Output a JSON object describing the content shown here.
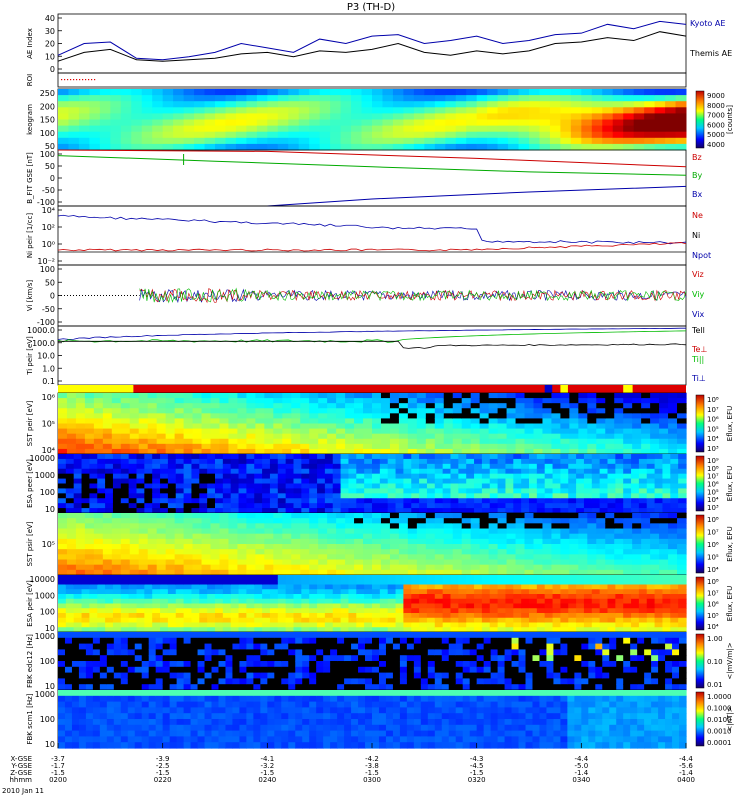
{
  "title": "P3 (TH-D)",
  "chart_data": {
    "type": "multi-panel time-series and spectrogram",
    "time_axis": {
      "ticks": [
        "0200",
        "0220",
        "0240",
        "0300",
        "0320",
        "0340",
        "0400"
      ],
      "date": "2010 Jan 11",
      "rows": [
        {
          "label": "X-GSE",
          "values": [
            "-3.7",
            "-3.9",
            "-4.1",
            "-4.2",
            "-4.3",
            "-4.4",
            "-4.4"
          ]
        },
        {
          "label": "Y-GSE",
          "values": [
            "-1.7",
            "-2.5",
            "-3.2",
            "-3.8",
            "-4.5",
            "-5.0",
            "-5.6"
          ]
        },
        {
          "label": "Z-GSE",
          "values": [
            "-1.5",
            "-1.5",
            "-1.5",
            "-1.5",
            "-1.5",
            "-1.4",
            "-1.4"
          ]
        },
        {
          "label": "hhmm",
          "values": [
            "0200",
            "0220",
            "0240",
            "0300",
            "0320",
            "0340",
            "0400"
          ]
        }
      ]
    },
    "panels": [
      {
        "id": "ae",
        "type": "line",
        "ylabel": "AE Index",
        "yticks": [
          "40",
          "30",
          "20",
          "10",
          "0"
        ],
        "ylim": [
          0,
          40
        ],
        "series": [
          {
            "name": "Kyoto AE",
            "color": "#0000aa",
            "x": [
              0,
              5,
              10,
              15,
              20,
              25,
              30,
              35,
              40,
              45,
              50,
              55,
              60,
              65,
              70,
              75,
              80,
              85,
              90,
              95,
              100,
              105,
              110,
              115,
              120
            ],
            "y": [
              12,
              20,
              21,
              10,
              9,
              11,
              14,
              20,
              17,
              14,
              23,
              20,
              25,
              26,
              20,
              22,
              25,
              20,
              22,
              26,
              27,
              33,
              30,
              35,
              33
            ]
          },
          {
            "name": "Themis AE",
            "color": "#000000",
            "x": [
              0,
              5,
              10,
              15,
              20,
              25,
              30,
              35,
              40,
              45,
              50,
              55,
              60,
              65,
              70,
              75,
              80,
              85,
              90,
              95,
              100,
              105,
              110,
              115,
              120
            ],
            "y": [
              8,
              14,
              16,
              9,
              8,
              9,
              10,
              13,
              14,
              11,
              15,
              14,
              16,
              20,
              14,
              12,
              15,
              13,
              15,
              20,
              21,
              24,
              22,
              28,
              25
            ]
          }
        ]
      },
      {
        "id": "roi",
        "type": "marker",
        "ylabel": "ROI"
      },
      {
        "id": "kev",
        "type": "heatmap",
        "ylabel": "keogram",
        "yticks": [
          "250",
          "200",
          "150",
          "100",
          "50"
        ],
        "colorbar": {
          "ticks": [
            "9000",
            "8000",
            "7000",
            "6000",
            "5000",
            "4000"
          ],
          "label": "[counts]"
        }
      },
      {
        "id": "bfit",
        "type": "line",
        "ylabel": "B_FIT GSE [nT]",
        "yticks": [
          "100",
          "50",
          "0",
          "-50",
          "-100"
        ],
        "ylim": [
          -100,
          100
        ],
        "series": [
          {
            "name": "Bz",
            "color": "#cc0000",
            "x": [
              0,
              40,
              80,
              120
            ],
            "y": [
              100,
              95,
              70,
              40
            ]
          },
          {
            "name": "By",
            "color": "#00aa00",
            "x": [
              0,
              30,
              60,
              90,
              120
            ],
            "y": [
              80,
              60,
              40,
              22,
              10
            ]
          },
          {
            "name": "Bx",
            "color": "#0000aa",
            "x": [
              40,
              60,
              90,
              120
            ],
            "y": [
              -100,
              -75,
              -50,
              -30
            ]
          }
        ]
      },
      {
        "id": "ni",
        "type": "line",
        "ylabel": "Ni peir [1/cc]",
        "yticks": [
          "10⁴",
          "10²",
          "10⁰",
          "10⁻²"
        ],
        "legend": [
          "Ne",
          "Ni",
          "Npot"
        ]
      },
      {
        "id": "vi",
        "type": "line",
        "ylabel": "Vi [km/s]",
        "yticks": [
          "100",
          "50",
          "0",
          "-50",
          "-100"
        ],
        "ylim": [
          -120,
          120
        ],
        "legend": [
          "Viz",
          "Viy",
          "Vix"
        ]
      },
      {
        "id": "ti",
        "type": "line",
        "ylabel": "Ti peir [eV]",
        "yticks": [
          "1000.0",
          "100.0",
          "10.0",
          "1.0",
          "0.1"
        ],
        "legend": [
          "Tell",
          "Te⊥",
          "Ti||",
          "Ti⊥"
        ]
      },
      {
        "id": "flag",
        "type": "bar"
      },
      {
        "id": "sst1",
        "type": "heatmap",
        "ylabel": "SST peir [eV]",
        "yticks": [
          "10⁶",
          "10⁵",
          "10⁴"
        ],
        "colorbar": {
          "ticks": [
            "10⁸",
            "10⁷",
            "10⁶",
            "10⁵",
            "10⁴",
            "10³"
          ],
          "label": "Eflux, EFU"
        }
      },
      {
        "id": "esa1",
        "type": "heatmap",
        "ylabel": "ESA peer [eV]",
        "yticks": [
          "10000",
          "1000",
          "100",
          "10"
        ],
        "colorbar": {
          "ticks": [
            "10⁹",
            "10⁸",
            "10⁷",
            "10⁶",
            "10⁵",
            "10⁴",
            "10³"
          ],
          "label": "Eflux, EFU"
        }
      },
      {
        "id": "sst2",
        "type": "heatmap",
        "ylabel": "SST psir [eV]",
        "yticks": [
          "10⁵"
        ],
        "colorbar": {
          "ticks": [
            "10⁸",
            "10⁷",
            "10⁶",
            "10⁵",
            "10⁴"
          ],
          "label": "Eflux, EFU"
        }
      },
      {
        "id": "esa2",
        "type": "heatmap",
        "ylabel": "ESA peir [eV]",
        "yticks": [
          "10000",
          "1000",
          "100",
          "10"
        ],
        "colorbar": {
          "ticks": [
            "10⁸",
            "10⁷",
            "10⁶",
            "10⁵",
            "10⁴"
          ],
          "label": "Eflux, EFU"
        }
      },
      {
        "id": "fbk1",
        "type": "heatmap",
        "ylabel": "FBK edc12 [Hz]",
        "yticks": [
          "1000",
          "100",
          "10"
        ],
        "colorbar": {
          "ticks": [
            "1.00",
            "0.10",
            "0.01"
          ],
          "label": "<|mV/m|>"
        }
      },
      {
        "id": "fbk2",
        "type": "heatmap",
        "ylabel": "FBK scm1 [Hz]",
        "yticks": [
          "1000",
          "100",
          "10"
        ],
        "colorbar": {
          "ticks": [
            "1.0000",
            "0.1000",
            "0.0100",
            "0.0010",
            "0.0001"
          ],
          "label": "<|nT|>"
        }
      }
    ]
  }
}
